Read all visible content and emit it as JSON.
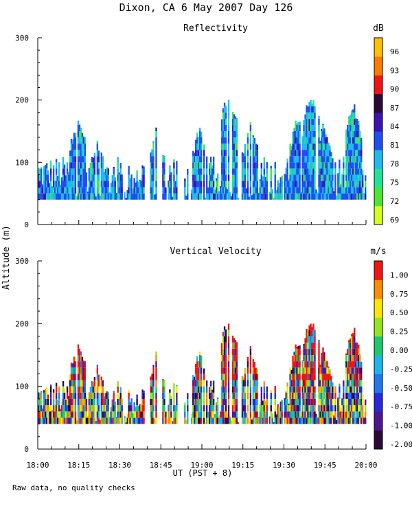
{
  "title": "Dixon, CA  6 May 2007  Day 126",
  "footnote": "Raw data, no quality checks",
  "chart_data": [
    {
      "type": "heatmap",
      "title": "Reflectivity",
      "ylabel": "Altitude (m)",
      "xlabel": "UT  (PST + 8)",
      "ylim": [
        0,
        300
      ],
      "yticks": [
        "0",
        "100",
        "200",
        "300"
      ],
      "xlim_hours": [
        18,
        20
      ],
      "colorbar": {
        "unit": "dB",
        "labels": [
          "69",
          "72",
          "75",
          "78",
          "81",
          "84",
          "87",
          "90",
          "93",
          "96"
        ],
        "colors": [
          "#d4ff1e",
          "#4ce632",
          "#1ee696",
          "#1ebaf0",
          "#1e50f0",
          "#3a14b4",
          "#2a0a36",
          "#f01414",
          "#ff7a00",
          "#ffc000"
        ]
      },
      "echo_base_m": 40,
      "echo_top_max_m": 200
    },
    {
      "type": "heatmap",
      "title": "Vertical Velocity",
      "ylabel": "Altitude (m)",
      "xlabel": "UT  (PST + 8)",
      "ylim": [
        0,
        300
      ],
      "yticks": [
        "0",
        "100",
        "200",
        "300"
      ],
      "xticks": [
        "18:00",
        "18:15",
        "18:30",
        "18:45",
        "19:00",
        "19:15",
        "19:30",
        "19:45",
        "20:00"
      ],
      "xlim_hours": [
        18,
        20
      ],
      "colorbar": {
        "unit": "m/s",
        "labels": [
          "-2.00",
          "-1.00",
          "-0.75",
          "-0.50",
          "-0.25",
          "0.00",
          "0.25",
          "0.50",
          "0.75",
          "1.00"
        ],
        "colors": [
          "#2a0a36",
          "#50148c",
          "#2828dc",
          "#1e78f0",
          "#1eb4f0",
          "#1ec86e",
          "#96e61e",
          "#ffe600",
          "#ff8c00",
          "#f01414"
        ]
      },
      "echo_base_m": 40,
      "echo_top_max_m": 200
    }
  ]
}
